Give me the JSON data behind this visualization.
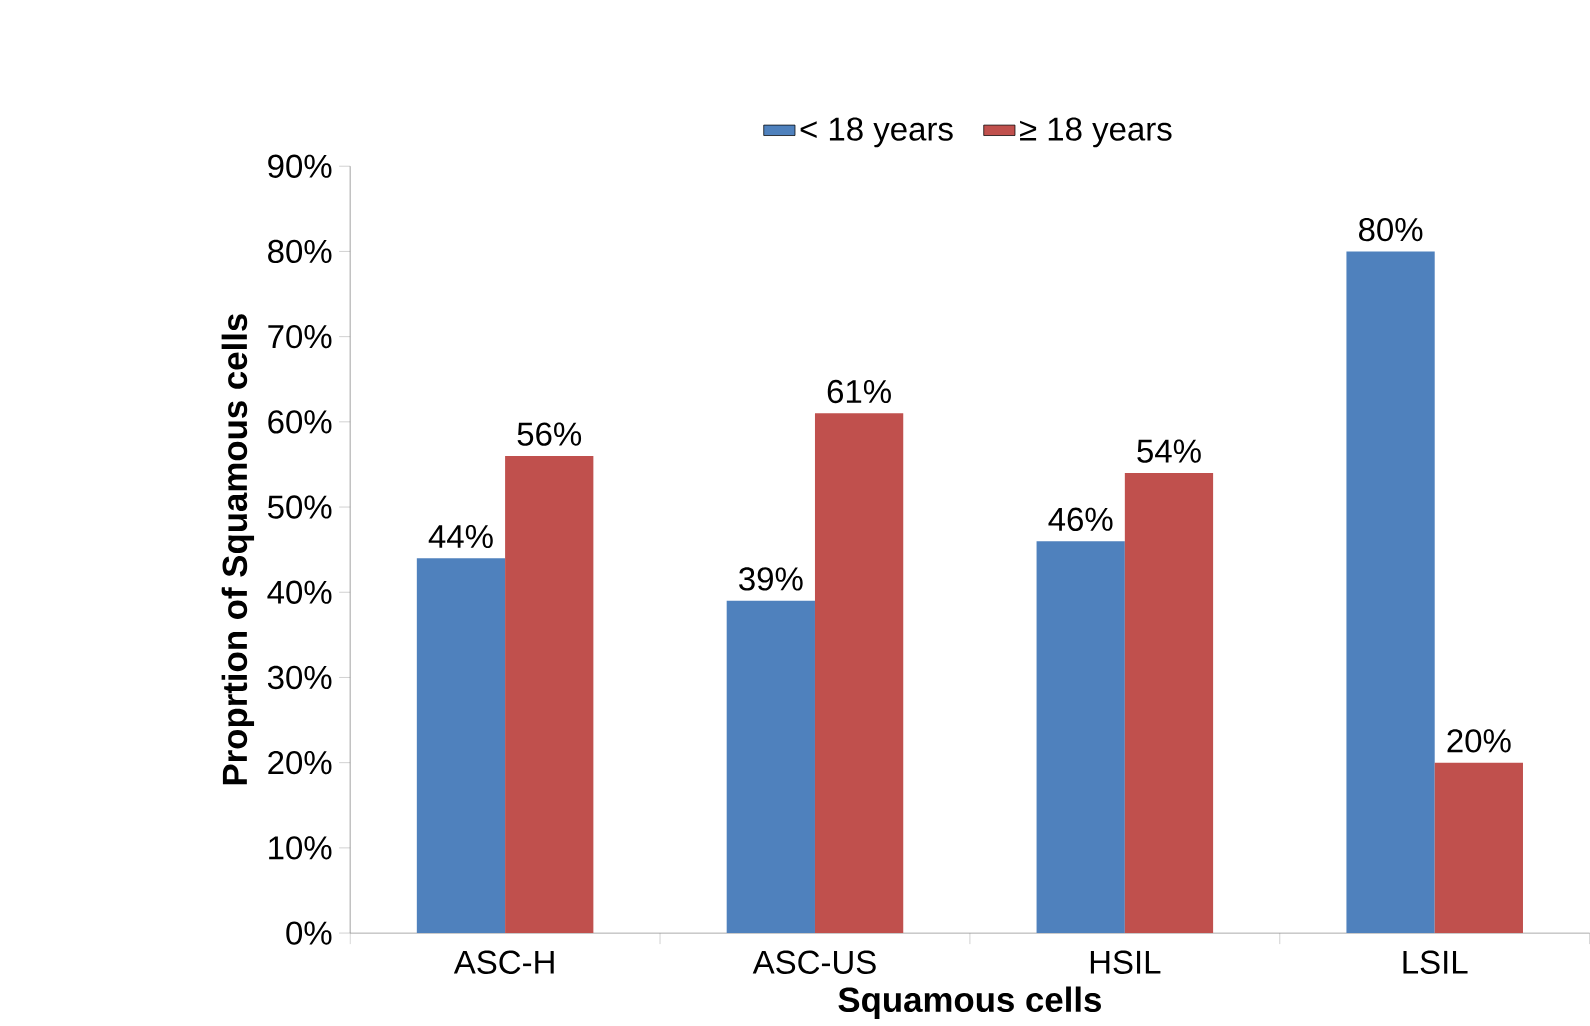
{
  "chart_data": {
    "type": "bar",
    "xlabel": "Squamous cells",
    "ylabel": "Proprtion of Squamous cells",
    "categories": [
      "ASC-H",
      "ASC-US",
      "HSIL",
      "LSIL"
    ],
    "series": [
      {
        "name": "< 18 years",
        "color": "#4f81bd",
        "values": [
          44,
          39,
          46,
          80
        ],
        "value_labels": [
          "44%",
          "39%",
          "46%",
          "80%"
        ]
      },
      {
        "name": "≥ 18 years",
        "color": "#c0504d",
        "values": [
          56,
          61,
          54,
          20
        ],
        "value_labels": [
          "56%",
          "61%",
          "54%",
          "20%"
        ]
      }
    ],
    "ylim": [
      0,
      90
    ],
    "yticks": [
      {
        "value": 0,
        "label": "0%"
      },
      {
        "value": 10,
        "label": "10%"
      },
      {
        "value": 20,
        "label": "20%"
      },
      {
        "value": 30,
        "label": "30%"
      },
      {
        "value": 40,
        "label": "40%"
      },
      {
        "value": 50,
        "label": "50%"
      },
      {
        "value": 60,
        "label": "60%"
      },
      {
        "value": 70,
        "label": "70%"
      },
      {
        "value": 80,
        "label": "80%"
      },
      {
        "value": 90,
        "label": "90%"
      }
    ],
    "grid": false,
    "legend": "top"
  }
}
